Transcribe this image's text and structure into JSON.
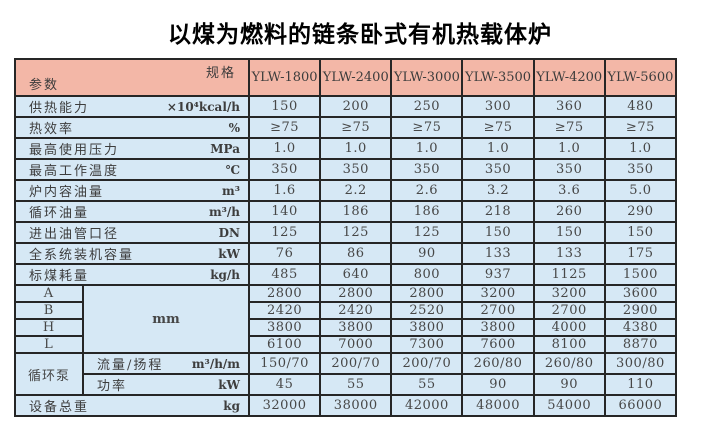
{
  "title": "以煤为燃料的链条卧式有机热载体炉",
  "header": {
    "spec_label": "规格",
    "param_label": "参数",
    "models": [
      "YLW-1800",
      "YLW-2400",
      "YLW-3000",
      "YLW-3500",
      "YLW-4200",
      "YLW-5600"
    ]
  },
  "sections": [
    {
      "type": "simple",
      "rows": [
        {
          "label": "供热能力",
          "unit": "×10⁴kcal/h",
          "values": [
            "150",
            "200",
            "250",
            "300",
            "360",
            "480"
          ]
        },
        {
          "label": "热效率",
          "unit": "%",
          "values": [
            "≥75",
            "≥75",
            "≥75",
            "≥75",
            "≥75",
            "≥75"
          ]
        },
        {
          "label": "最高使用压力",
          "unit": "MPa",
          "values": [
            "1.0",
            "1.0",
            "1.0",
            "1.0",
            "1.0",
            "1.0"
          ]
        },
        {
          "label": "最高工作温度",
          "unit": "℃",
          "values": [
            "350",
            "350",
            "350",
            "350",
            "350",
            "350"
          ]
        },
        {
          "label": "炉内容油量",
          "unit": "m³",
          "values": [
            "1.6",
            "2.2",
            "2.6",
            "3.2",
            "3.6",
            "5.0"
          ]
        },
        {
          "label": "循环油量",
          "unit": "m³/h",
          "values": [
            "140",
            "186",
            "186",
            "218",
            "260",
            "290"
          ]
        },
        {
          "label": "进出油管口径",
          "unit": "DN",
          "values": [
            "125",
            "125",
            "125",
            "150",
            "150",
            "150"
          ]
        },
        {
          "label": "全系统装机容量",
          "unit": "kW",
          "values": [
            "76",
            "86",
            "90",
            "133",
            "133",
            "175"
          ]
        },
        {
          "label": "标煤耗量",
          "unit": "kg/h",
          "values": [
            "485",
            "640",
            "800",
            "937",
            "1125",
            "1500"
          ]
        }
      ]
    },
    {
      "type": "dims",
      "unit": "mm",
      "rows": [
        {
          "label": "A",
          "values": [
            "2800",
            "2800",
            "2800",
            "3200",
            "3200",
            "3600"
          ]
        },
        {
          "label": "B",
          "values": [
            "2420",
            "2420",
            "2520",
            "2700",
            "2700",
            "2900"
          ]
        },
        {
          "label": "H",
          "values": [
            "3800",
            "3800",
            "3800",
            "3800",
            "4000",
            "4380"
          ]
        },
        {
          "label": "L",
          "values": [
            "6100",
            "7000",
            "7300",
            "7600",
            "8100",
            "8870"
          ]
        }
      ]
    },
    {
      "type": "group",
      "label": "循环泵",
      "rows": [
        {
          "label": "流量/扬程",
          "unit": "m³/h/m",
          "values": [
            "150/70",
            "200/70",
            "200/70",
            "260/80",
            "260/80",
            "300/80"
          ]
        },
        {
          "label": "功率",
          "unit": "kW",
          "values": [
            "45",
            "55",
            "55",
            "90",
            "90",
            "110"
          ]
        }
      ]
    },
    {
      "type": "simple",
      "rows": [
        {
          "label": "设备总重",
          "unit": "kg",
          "values": [
            "32000",
            "38000",
            "42000",
            "48000",
            "54000",
            "66000"
          ]
        }
      ]
    }
  ]
}
